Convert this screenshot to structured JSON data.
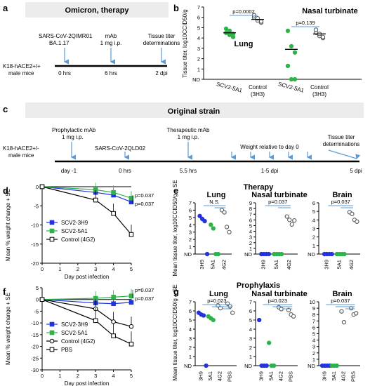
{
  "panels": {
    "a": {
      "letter": "a",
      "title": "Omicron, therapy",
      "mouse_l1": "K18-hACE2+/+",
      "mouse_l2": "male mice",
      "events": [
        {
          "l1": "SARS-CoV-2QIMR01",
          "l2": "BA.1.17",
          "time": "0 hrs"
        },
        {
          "l1": "mAb",
          "l2": "1 mg i.p.",
          "time": "6 hrs"
        },
        {
          "l1": "Tissue titer",
          "l2": "determinations",
          "time": "2 dpi"
        }
      ]
    },
    "c": {
      "letter": "c",
      "title": "Original strain",
      "mouse_l1": "K18-hACE2+/-",
      "mouse_l2": "male mice",
      "events": [
        {
          "l1": "Prophylactic mAb",
          "l2": "1 mg i.p.",
          "time": "day -1"
        },
        {
          "l1": "SARS-CoV-2QLD02",
          "l2": "",
          "time": "0 hrs"
        },
        {
          "l1": "Therapeutic mAb",
          "l2": "1 mg i.p.",
          "time": "5.5 hrs"
        },
        {
          "l1": "Weight relative to day 0",
          "l2": "",
          "time": "1-5 dpi"
        },
        {
          "l1": "Tissue titer",
          "l2": "determinations",
          "time": "5 dpi"
        }
      ]
    },
    "d_title": "Therapy",
    "f_title": "Prophylaxis"
  },
  "chart_data": [
    {
      "id": "b",
      "type": "scatter",
      "letter": "b",
      "ylabel": "Tissue titer, log10CCID50/g",
      "yticks": [
        "ND",
        "1",
        "2",
        "3",
        "4",
        "5",
        "6",
        "7"
      ],
      "ylim": [
        0,
        7
      ],
      "groups": [
        {
          "label": "SCV2-5A1",
          "color": "#2db34a",
          "values": [
            4.5,
            4.3,
            4.1,
            4.9,
            4.7,
            4.4
          ],
          "mean": 4.5
        },
        {
          "label": "Control (3H3)",
          "color": "#ffffff",
          "values": [
            6.0,
            5.7,
            5.5,
            6.2,
            5.9,
            5.6
          ],
          "mean": 5.8
        },
        {
          "label": "SCV2-5A1",
          "color": "#2db34a",
          "values": [
            4.7,
            3.2,
            2.6,
            1.3,
            0,
            0
          ],
          "mean": 2.9
        },
        {
          "label": "Control (3H3)",
          "color": "#ffffff",
          "values": [
            4.5,
            4.2,
            4.0,
            4.8,
            4.4,
            4.1
          ],
          "mean": 4.4
        }
      ],
      "annotations": [
        {
          "text": "p=0.0002"
        },
        {
          "text": "p=0.139"
        },
        {
          "text": "Lung"
        },
        {
          "text": "Nasal turbinate"
        }
      ]
    },
    {
      "id": "d",
      "type": "line",
      "letter": "d",
      "title": "Therapy",
      "xlabel": "Day post infection",
      "ylabel": "Mean % weight change + SE",
      "xticks": [
        0,
        1,
        2,
        3,
        4,
        5
      ],
      "yticks": [
        0,
        -5,
        -10,
        -15,
        -20
      ],
      "ylim": [
        -20,
        0
      ],
      "series": [
        {
          "name": "SCV2-3H9",
          "color": "#2233dd",
          "marker": "square-filled",
          "x": [
            0,
            3,
            4,
            5
          ],
          "y": [
            0,
            -1.5,
            -2.2,
            -4.0
          ]
        },
        {
          "name": "SCV2-5A1",
          "color": "#2db34a",
          "marker": "square-filled",
          "x": [
            0,
            3,
            4,
            5
          ],
          "y": [
            0,
            -0.8,
            -1.5,
            -3.0
          ]
        },
        {
          "name": "Control (4G2)",
          "color": "#000000",
          "marker": "square-open",
          "x": [
            0,
            3,
            4,
            5
          ],
          "y": [
            0,
            -3.5,
            -7.0,
            -12.5
          ]
        }
      ],
      "annotations": [
        {
          "text": "p=0.037"
        },
        {
          "text": "p=0.037"
        }
      ]
    },
    {
      "id": "e",
      "type": "scatter",
      "letter": "e",
      "ylabel": "Mean tissue titer, log10CCID50/g + SE",
      "panels": [
        {
          "title": "Lung",
          "yticks": [
            "ND",
            "1",
            "2",
            "3",
            "4",
            "5",
            "6",
            "7"
          ],
          "ylim": [
            0,
            7
          ],
          "p": "N.S.",
          "groups": [
            {
              "label": "3H9",
              "color": "#2233dd",
              "values": [
                5.2,
                4.8,
                4.5,
                0
              ]
            },
            {
              "label": "5A1",
              "color": "#2db34a",
              "values": [
                4.0,
                3.5,
                0,
                0
              ]
            },
            {
              "label": "4G2",
              "color": "#ffffff",
              "values": [
                6.0,
                5.7,
                3.7,
                3.0
              ]
            }
          ]
        },
        {
          "title": "Nasal turbinate",
          "yticks": [
            "ND",
            "1",
            "2",
            "3",
            "4",
            "5",
            "6",
            "7",
            "8",
            "9"
          ],
          "ylim": [
            0,
            9
          ],
          "p": "p=0.037",
          "groups": [
            {
              "label": "3H9",
              "color": "#2233dd",
              "values": [
                0,
                0,
                0,
                0,
                0
              ]
            },
            {
              "label": "5A1",
              "color": "#2db34a",
              "values": [
                0,
                0,
                0,
                0,
                0
              ]
            },
            {
              "label": "4G2",
              "color": "#ffffff",
              "values": [
                6.6,
                6.0,
                5.2,
                5.9
              ]
            }
          ]
        },
        {
          "title": "Brain",
          "yticks": [
            "ND",
            "1",
            "2",
            "3",
            "4",
            "5",
            "6"
          ],
          "ylim": [
            0,
            6
          ],
          "p": "p=0.037",
          "groups": [
            {
              "label": "3H9",
              "color": "#2233dd",
              "values": [
                0,
                0,
                0,
                0,
                0
              ]
            },
            {
              "label": "5A1",
              "color": "#2db34a",
              "values": [
                0,
                0,
                0,
                0,
                0
              ]
            },
            {
              "label": "4G2",
              "color": "#ffffff",
              "values": [
                4.9,
                4.7,
                4.0,
                3.8
              ]
            }
          ]
        }
      ]
    },
    {
      "id": "f",
      "type": "line",
      "letter": "f",
      "title": "Prophylaxis",
      "xlabel": "Day post infection",
      "ylabel": "Mean % weight change + SE",
      "xticks": [
        0,
        1,
        2,
        3,
        4,
        5
      ],
      "yticks": [
        5,
        0,
        -5,
        -10,
        -15,
        -20,
        -25,
        -30
      ],
      "ylim": [
        -30,
        5
      ],
      "series": [
        {
          "name": "SCV2-3H9",
          "color": "#2233dd",
          "marker": "square-filled",
          "x": [
            0,
            3,
            4,
            5
          ],
          "y": [
            0,
            -1.5,
            -1.8,
            -1.2
          ]
        },
        {
          "name": "SCV2-5A1",
          "color": "#2db34a",
          "marker": "square-filled",
          "x": [
            0,
            3,
            4,
            5
          ],
          "y": [
            0,
            0.5,
            1.0,
            1.5
          ]
        },
        {
          "name": "Control (4G2)",
          "color": "#000000",
          "marker": "circle-open",
          "x": [
            0,
            3,
            4,
            5
          ],
          "y": [
            0,
            -4.0,
            -9.5,
            -11.5
          ]
        },
        {
          "name": "PBS",
          "color": "#000000",
          "marker": "square-open",
          "x": [
            0,
            3,
            4,
            5
          ],
          "y": [
            0,
            -9.0,
            -15.5,
            -19.0
          ]
        }
      ],
      "annotations": [
        {
          "text": "p=0.037"
        },
        {
          "text": "p=0.037"
        }
      ]
    },
    {
      "id": "g",
      "type": "scatter",
      "letter": "g",
      "ylabel": "Mean tissue titer, log10CCID50/g + SE",
      "panels": [
        {
          "title": "Lung",
          "yticks": [
            "ND",
            "1",
            "2",
            "3",
            "4",
            "5",
            "6",
            "7"
          ],
          "ylim": [
            0,
            7
          ],
          "p": "p=0.023",
          "groups": [
            {
              "label": "3H9",
              "color": "#2233dd",
              "values": [
                5.8,
                5.6,
                5.5,
                0
              ]
            },
            {
              "label": "5A1",
              "color": "#2db34a",
              "values": [
                5.4,
                5.2,
                5.0
              ]
            },
            {
              "label": "4G2",
              "color": "#ffffff",
              "values": [
                6.6,
                6.3
              ]
            },
            {
              "label": "PBS",
              "color": "#ffffff",
              "values": [
                6.8,
                6.5,
                5.8
              ]
            }
          ]
        },
        {
          "title": "Nasal turbinate",
          "yticks": [
            "ND",
            "1",
            "2",
            "3",
            "4",
            "5",
            "6",
            "7"
          ],
          "ylim": [
            0,
            7
          ],
          "p": "p=0.023",
          "groups": [
            {
              "label": "3H9",
              "color": "#2233dd",
              "values": [
                5.0,
                0,
                0,
                0
              ]
            },
            {
              "label": "5A1",
              "color": "#2db34a",
              "values": [
                2.5,
                0,
                0
              ]
            },
            {
              "label": "4G2",
              "color": "#ffffff",
              "values": [
                6.4,
                6.2
              ]
            },
            {
              "label": "PBS",
              "color": "#ffffff",
              "values": [
                6.1,
                5.6,
                5.4
              ]
            }
          ]
        },
        {
          "title": "Brain",
          "yticks": [
            "ND",
            "1",
            "2",
            "3",
            "4",
            "5",
            "6",
            "7",
            "8",
            "9",
            "10"
          ],
          "ylim": [
            0,
            10
          ],
          "p": "p=0.037",
          "groups": [
            {
              "label": "3H9",
              "color": "#2233dd",
              "values": [
                0,
                0,
                0,
                0
              ]
            },
            {
              "label": "5A1",
              "color": "#2db34a",
              "values": [
                0,
                0,
                0
              ]
            },
            {
              "label": "4G2",
              "color": "#ffffff",
              "values": [
                8.5,
                6.8
              ]
            },
            {
              "label": "PBS",
              "color": "#ffffff",
              "values": [
                9.0,
                8.0,
                8.2
              ]
            }
          ]
        }
      ]
    }
  ]
}
